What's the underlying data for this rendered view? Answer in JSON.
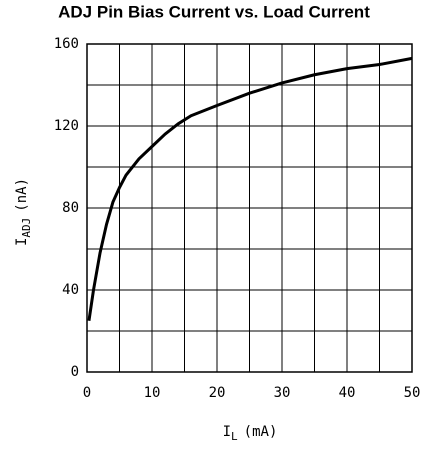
{
  "chart_data": {
    "type": "line",
    "title": "ADJ Pin Bias Current vs. Load Current",
    "ylabel": {
      "main": "I",
      "sub": "ADJ",
      "unit": "(nA)"
    },
    "xlabel": {
      "main": "I",
      "sub": "L",
      "unit": "(mA)"
    },
    "x": [
      0.3,
      1,
      2,
      3,
      4,
      5,
      6,
      8,
      10,
      12,
      14,
      16,
      20,
      25,
      30,
      35,
      40,
      45,
      50
    ],
    "series": [
      {
        "color": "#000000",
        "values": [
          25,
          40,
          58,
          72,
          83,
          90,
          96,
          104,
          110,
          116,
          121,
          125,
          130,
          136,
          141,
          145,
          148,
          150,
          153
        ]
      }
    ],
    "xlim": [
      0,
      50
    ],
    "ylim": [
      0,
      160
    ],
    "xticks": [
      0,
      10,
      20,
      30,
      40,
      50
    ],
    "yticks": [
      0,
      40,
      80,
      120,
      160
    ],
    "xgrid": [
      0,
      5,
      10,
      15,
      20,
      25,
      30,
      35,
      40,
      45,
      50
    ],
    "ygrid": [
      0,
      20,
      40,
      60,
      80,
      100,
      120,
      140,
      160
    ],
    "grid": true
  }
}
